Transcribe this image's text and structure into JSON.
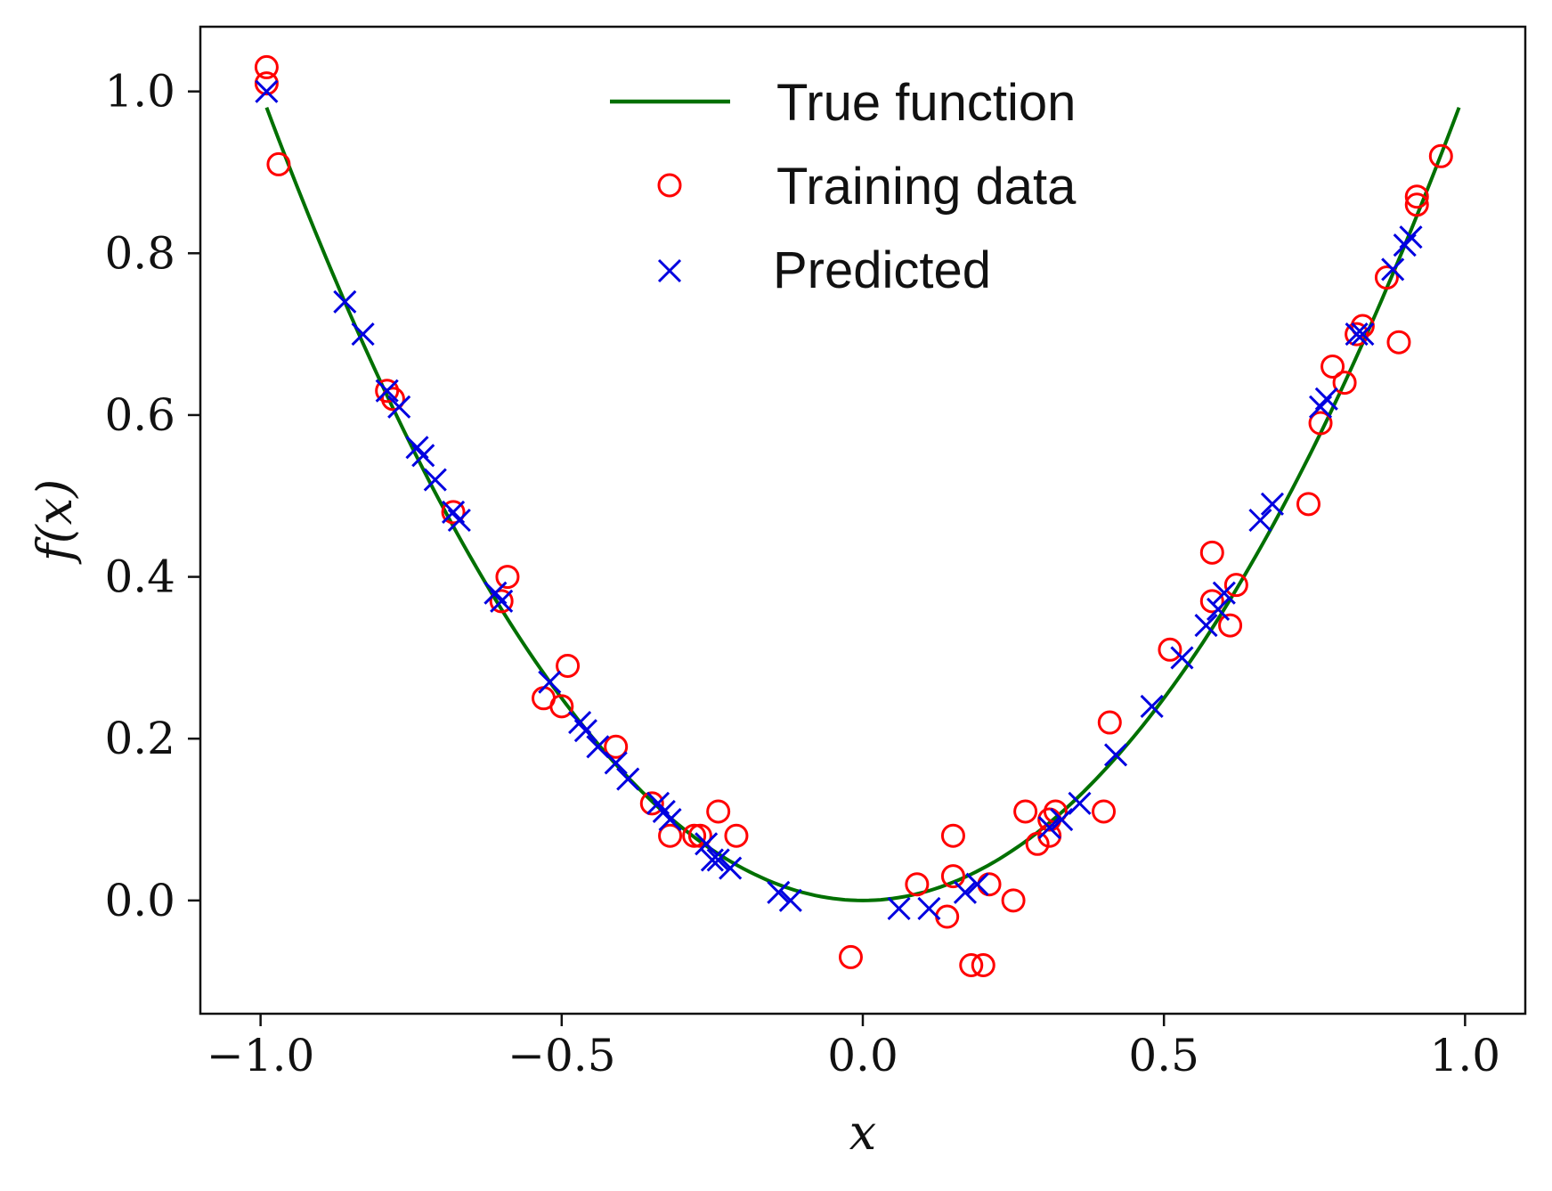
{
  "chart_data": {
    "type": "scatter",
    "title": "",
    "xlabel": "x",
    "ylabel": "f(x)",
    "xlim": [
      -1.1,
      1.1
    ],
    "ylim": [
      -0.14,
      1.08
    ],
    "xticks": [
      -1.0,
      -0.5,
      0.0,
      0.5,
      1.0
    ],
    "xtick_labels": [
      "−1.0",
      "−0.5",
      "0.0",
      "0.5",
      "1.0"
    ],
    "yticks": [
      0.0,
      0.2,
      0.4,
      0.6,
      0.8,
      1.0
    ],
    "ytick_labels": [
      "0.0",
      "0.2",
      "0.4",
      "0.6",
      "0.8",
      "1.0"
    ],
    "grid": false,
    "legend_position": "top-center",
    "series": [
      {
        "name": "True function",
        "kind": "line",
        "function": "x^2",
        "x_range": [
          -0.99,
          0.99
        ],
        "color": "#007000"
      },
      {
        "name": "Training data",
        "kind": "scatter",
        "marker": "circle",
        "color": "#ff0000",
        "points": [
          [
            -0.99,
            1.03
          ],
          [
            -0.99,
            1.01
          ],
          [
            -0.97,
            0.91
          ],
          [
            -0.79,
            0.63
          ],
          [
            -0.78,
            0.62
          ],
          [
            -0.68,
            0.48
          ],
          [
            -0.6,
            0.37
          ],
          [
            -0.59,
            0.4
          ],
          [
            -0.53,
            0.25
          ],
          [
            -0.5,
            0.24
          ],
          [
            -0.49,
            0.29
          ],
          [
            -0.41,
            0.19
          ],
          [
            -0.35,
            0.12
          ],
          [
            -0.32,
            0.08
          ],
          [
            -0.28,
            0.08
          ],
          [
            -0.27,
            0.08
          ],
          [
            -0.24,
            0.11
          ],
          [
            -0.21,
            0.08
          ],
          [
            -0.02,
            -0.07
          ],
          [
            0.09,
            0.02
          ],
          [
            0.14,
            -0.02
          ],
          [
            0.15,
            0.03
          ],
          [
            0.15,
            0.08
          ],
          [
            0.18,
            -0.08
          ],
          [
            0.2,
            -0.08
          ],
          [
            0.21,
            0.02
          ],
          [
            0.25,
            0.0
          ],
          [
            0.27,
            0.11
          ],
          [
            0.29,
            0.07
          ],
          [
            0.31,
            0.08
          ],
          [
            0.31,
            0.1
          ],
          [
            0.32,
            0.11
          ],
          [
            0.4,
            0.11
          ],
          [
            0.41,
            0.22
          ],
          [
            0.51,
            0.31
          ],
          [
            0.58,
            0.37
          ],
          [
            0.58,
            0.43
          ],
          [
            0.61,
            0.34
          ],
          [
            0.62,
            0.39
          ],
          [
            0.74,
            0.49
          ],
          [
            0.76,
            0.59
          ],
          [
            0.78,
            0.66
          ],
          [
            0.8,
            0.64
          ],
          [
            0.82,
            0.7
          ],
          [
            0.83,
            0.71
          ],
          [
            0.87,
            0.77
          ],
          [
            0.89,
            0.69
          ],
          [
            0.92,
            0.87
          ],
          [
            0.92,
            0.86
          ],
          [
            0.96,
            0.92
          ]
        ]
      },
      {
        "name": "Predicted",
        "kind": "scatter",
        "marker": "x",
        "color": "#0000e0",
        "points": [
          [
            -0.99,
            1.0
          ],
          [
            -0.86,
            0.74
          ],
          [
            -0.83,
            0.7
          ],
          [
            -0.79,
            0.63
          ],
          [
            -0.77,
            0.61
          ],
          [
            -0.74,
            0.56
          ],
          [
            -0.73,
            0.55
          ],
          [
            -0.71,
            0.52
          ],
          [
            -0.68,
            0.48
          ],
          [
            -0.67,
            0.47
          ],
          [
            -0.61,
            0.38
          ],
          [
            -0.6,
            0.37
          ],
          [
            -0.52,
            0.27
          ],
          [
            -0.47,
            0.22
          ],
          [
            -0.46,
            0.21
          ],
          [
            -0.44,
            0.19
          ],
          [
            -0.41,
            0.17
          ],
          [
            -0.39,
            0.15
          ],
          [
            -0.34,
            0.12
          ],
          [
            -0.33,
            0.11
          ],
          [
            -0.32,
            0.1
          ],
          [
            -0.26,
            0.07
          ],
          [
            -0.25,
            0.05
          ],
          [
            -0.24,
            0.05
          ],
          [
            -0.22,
            0.04
          ],
          [
            -0.14,
            0.01
          ],
          [
            -0.12,
            0.0
          ],
          [
            0.06,
            -0.01
          ],
          [
            0.11,
            -0.01
          ],
          [
            0.17,
            0.01
          ],
          [
            0.19,
            0.02
          ],
          [
            0.31,
            0.09
          ],
          [
            0.33,
            0.1
          ],
          [
            0.36,
            0.12
          ],
          [
            0.42,
            0.18
          ],
          [
            0.48,
            0.24
          ],
          [
            0.53,
            0.3
          ],
          [
            0.57,
            0.34
          ],
          [
            0.59,
            0.36
          ],
          [
            0.6,
            0.38
          ],
          [
            0.66,
            0.47
          ],
          [
            0.68,
            0.49
          ],
          [
            0.76,
            0.61
          ],
          [
            0.77,
            0.62
          ],
          [
            0.82,
            0.7
          ],
          [
            0.83,
            0.7
          ],
          [
            0.88,
            0.78
          ],
          [
            0.9,
            0.81
          ],
          [
            0.91,
            0.82
          ]
        ]
      }
    ]
  }
}
